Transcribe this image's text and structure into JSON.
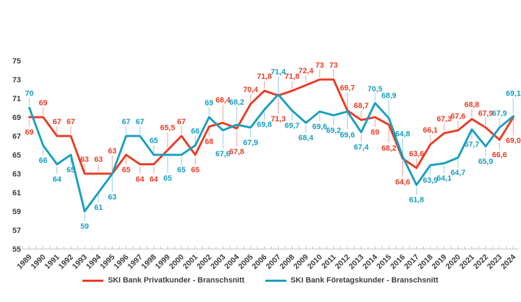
{
  "chart_data": {
    "type": "line",
    "title": "",
    "x": [
      1989,
      1990,
      1991,
      1992,
      1993,
      1994,
      1995,
      1996,
      1997,
      1998,
      1999,
      2000,
      2001,
      2002,
      2003,
      2004,
      2005,
      2006,
      2007,
      2008,
      2009,
      2010,
      2011,
      2012,
      2013,
      2014,
      2015,
      2016,
      2017,
      2018,
      2019,
      2020,
      2021,
      2022,
      2023,
      2024
    ],
    "ylim": [
      55,
      75
    ],
    "ytick_step": 2,
    "grid": false,
    "legend_position": "bottom",
    "decimal_separator": ",",
    "axis_color": "#bfbfbf",
    "series": [
      {
        "name": "SKI Bank Privatkunder - Branschsnitt",
        "color": "#ea3b24",
        "values": [
          69,
          69,
          67,
          67,
          63,
          63,
          63,
          65,
          64,
          64,
          65.5,
          67,
          65,
          68,
          68.4,
          67.8,
          70.4,
          71.8,
          71.3,
          71.8,
          72.4,
          73,
          73,
          69.7,
          68.7,
          69,
          68.2,
          64.6,
          63.6,
          66.1,
          67.3,
          67.6,
          68.8,
          67.9,
          66.6,
          69.0
        ],
        "labels": [
          "69",
          "69",
          "67",
          "67",
          "63",
          "63",
          "63",
          "65",
          "64",
          "64",
          "65,5",
          "67",
          "65",
          "68",
          "68,4",
          "67,8",
          "70,4",
          "71,8",
          "71,3",
          "71,8",
          "72,4",
          "73",
          "73",
          "69,7",
          "68,7",
          "69",
          "68,2",
          "64,6",
          "63,6",
          "66,1",
          "67,3",
          "67,6",
          "68,8",
          "67,9",
          "66,6",
          "69,0"
        ]
      },
      {
        "name": "SKI Bank Företagskunder - Branschsnitt",
        "color": "#189fc0",
        "values": [
          70,
          66,
          64,
          65,
          59,
          61,
          63,
          67,
          67,
          65,
          65,
          65,
          66,
          69,
          67.6,
          68.2,
          67.9,
          69.8,
          71.4,
          69.7,
          68.4,
          69.6,
          69.2,
          69.6,
          67.4,
          70.5,
          68.9,
          64.8,
          61.8,
          63.9,
          64.1,
          64.7,
          67.7,
          65.9,
          67.9,
          69.1
        ],
        "labels": [
          "70",
          "66",
          "64",
          "65",
          "59",
          "61",
          "63",
          "67",
          "67",
          "65",
          "65",
          "65",
          "66",
          "69",
          "67,6",
          "68,2",
          "67,9",
          "69,8",
          "71,4",
          "69,7",
          "68,4",
          "69,6",
          "69,2",
          "69,6",
          "67,4",
          "70,5",
          "68,9",
          "64,8",
          "61,8",
          "63,9",
          "64,1",
          "64,7",
          "67,7",
          "65,9",
          "67,9",
          "69,1"
        ]
      }
    ]
  }
}
